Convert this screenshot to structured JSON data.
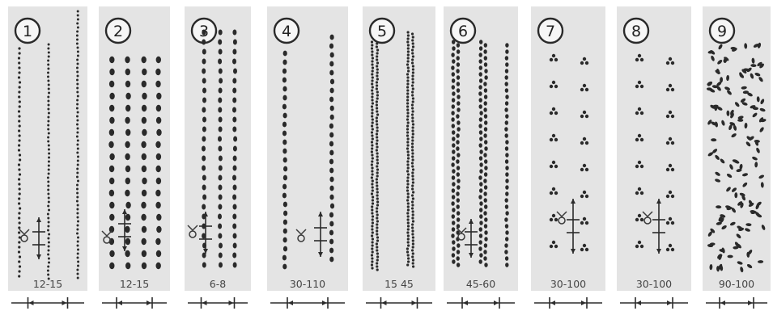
{
  "figure": {
    "panels": [
      {
        "number": "1",
        "dimension": "12-15",
        "pattern": "sparse-rows"
      },
      {
        "number": "2",
        "dimension": "12-15",
        "pattern": "four-row-band"
      },
      {
        "number": "3",
        "dimension": "6-8",
        "pattern": "three-rows"
      },
      {
        "number": "4",
        "dimension": "30-110",
        "pattern": "two-rows-wide"
      },
      {
        "number": "5",
        "dimension": "15  45",
        "pattern": "dense-paired-rows"
      },
      {
        "number": "6",
        "dimension": "45-60",
        "pattern": "paired-rows"
      },
      {
        "number": "7",
        "dimension": "30-100",
        "pattern": "hill-triplets"
      },
      {
        "number": "8",
        "dimension": "30-100",
        "pattern": "hill-triplets"
      },
      {
        "number": "9",
        "dimension": "90-100",
        "pattern": "random-scatter"
      }
    ]
  },
  "colors": {
    "panel": "#e4e4e4",
    "ink": "#2a2a2a",
    "background": "#ffffff"
  }
}
